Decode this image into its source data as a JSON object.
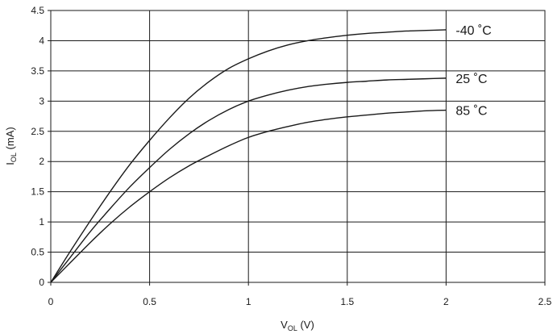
{
  "chart_data": {
    "type": "line",
    "title": "",
    "xlabel": {
      "main": "V",
      "sub": "OL",
      "rest": " (V)"
    },
    "ylabel": {
      "main": "I",
      "sub": "OL",
      "rest": " (mA)"
    },
    "xlim": [
      0,
      2.5
    ],
    "ylim": [
      0,
      4.5
    ],
    "x_ticks": [
      "0",
      "0.5",
      "1",
      "1.5",
      "2",
      "2.5"
    ],
    "y_ticks": [
      "0",
      "0.5",
      "1",
      "1.5",
      "2",
      "2.5",
      "3",
      "3.5",
      "4",
      "4.5"
    ],
    "grid": true,
    "series": [
      {
        "name": "-40 ˚C",
        "x": [
          0,
          0.1,
          0.2,
          0.3,
          0.4,
          0.5,
          0.6,
          0.7,
          0.8,
          0.9,
          1.0,
          1.1,
          1.2,
          1.3,
          1.4,
          1.5,
          1.6,
          1.7,
          1.8,
          1.9,
          2.0
        ],
        "y": [
          0,
          0.52,
          1.02,
          1.5,
          1.95,
          2.35,
          2.72,
          3.05,
          3.32,
          3.54,
          3.7,
          3.83,
          3.93,
          4.0,
          4.05,
          4.09,
          4.12,
          4.14,
          4.16,
          4.17,
          4.18
        ]
      },
      {
        "name": "25 ˚C",
        "x": [
          0,
          0.1,
          0.2,
          0.3,
          0.4,
          0.5,
          0.6,
          0.7,
          0.8,
          0.9,
          1.0,
          1.1,
          1.2,
          1.3,
          1.4,
          1.5,
          1.6,
          1.7,
          1.8,
          1.9,
          2.0
        ],
        "y": [
          0,
          0.42,
          0.84,
          1.22,
          1.58,
          1.9,
          2.2,
          2.46,
          2.68,
          2.86,
          3.0,
          3.1,
          3.18,
          3.24,
          3.28,
          3.31,
          3.33,
          3.35,
          3.36,
          3.37,
          3.38
        ]
      },
      {
        "name": "85 ˚C",
        "x": [
          0,
          0.1,
          0.2,
          0.3,
          0.4,
          0.5,
          0.6,
          0.7,
          0.8,
          0.9,
          1.0,
          1.1,
          1.2,
          1.3,
          1.4,
          1.5,
          1.6,
          1.7,
          1.8,
          1.9,
          2.0
        ],
        "y": [
          0,
          0.33,
          0.66,
          0.97,
          1.25,
          1.5,
          1.73,
          1.93,
          2.1,
          2.26,
          2.4,
          2.5,
          2.58,
          2.65,
          2.7,
          2.74,
          2.77,
          2.8,
          2.82,
          2.84,
          2.85
        ]
      }
    ]
  }
}
